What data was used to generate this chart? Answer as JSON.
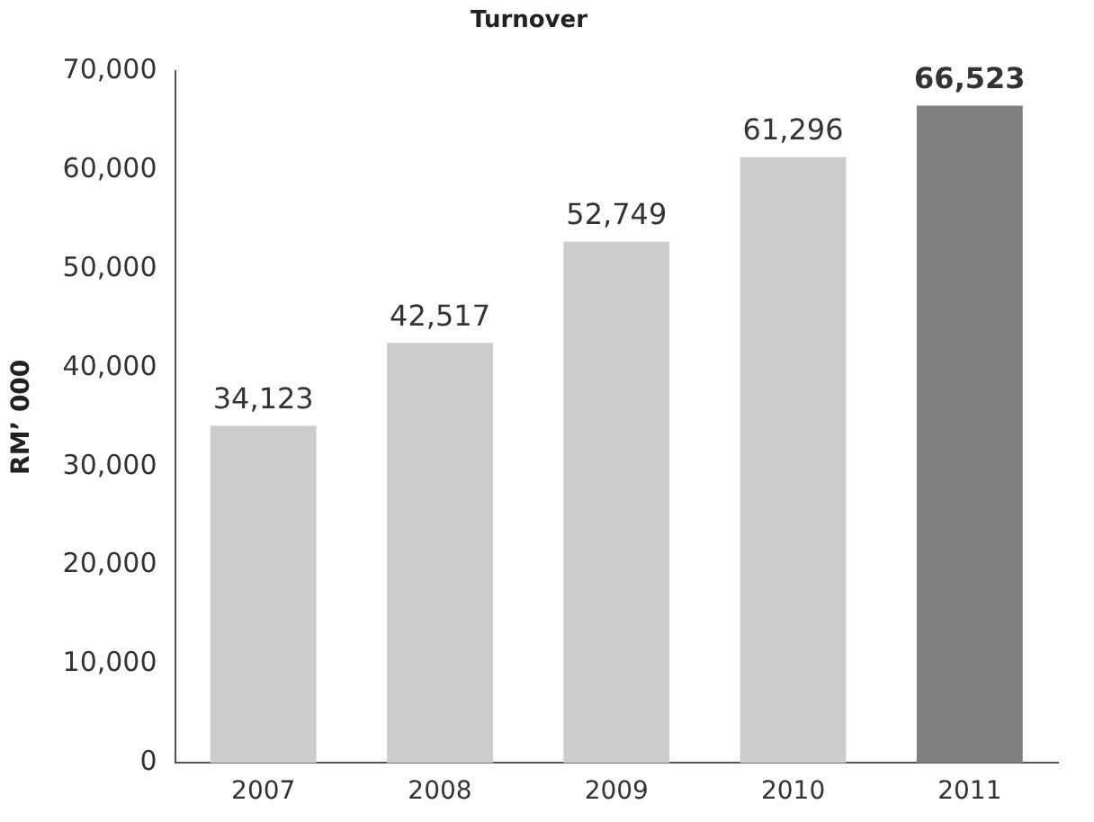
{
  "chart_data": {
    "type": "bar",
    "title": "Turnover",
    "ylabel": "RM’ 000",
    "categories": [
      "2007",
      "2008",
      "2009",
      "2010",
      "2011"
    ],
    "values": [
      34123,
      42517,
      52749,
      61296,
      66523
    ],
    "colors": [
      "#cccccc",
      "#cccccc",
      "#cccccc",
      "#cccccc",
      "#7f7f7f"
    ],
    "value_labels": [
      "34,123",
      "42,517",
      "52,749",
      "61,296",
      "66,523"
    ],
    "ylim": [
      0,
      70000
    ],
    "yticks": [
      0,
      {
        "value": 10000,
        "label": "10,000"
      },
      {
        "value": 20000,
        "label": "20,000"
      },
      {
        "value": 30000,
        "label": "30,000"
      },
      {
        "value": 40000,
        "label": "40,000"
      },
      {
        "value": 50000,
        "label": "50,000"
      },
      {
        "value": 60000,
        "label": "60,000"
      },
      {
        "value": 70000,
        "label": "70,000"
      }
    ],
    "grid": false,
    "legend": false
  }
}
